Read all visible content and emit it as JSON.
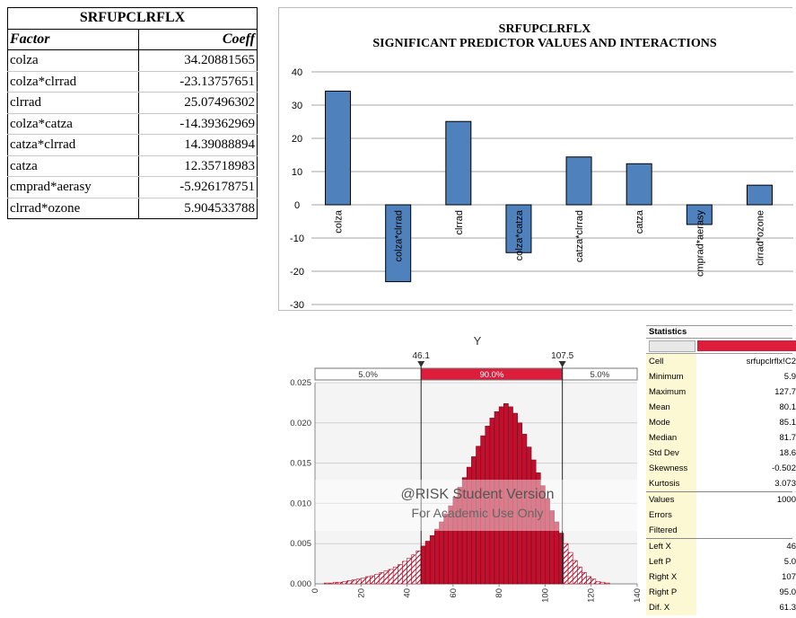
{
  "table": {
    "title": "SRFUPCLRFLX",
    "col_factor": "Factor",
    "col_coeff": "Coeff",
    "rows": [
      {
        "factor": "colza",
        "coeff": "34.20881565"
      },
      {
        "factor": "colza*clrrad",
        "coeff": "-23.13757651"
      },
      {
        "factor": "clrrad",
        "coeff": "25.07496302"
      },
      {
        "factor": "colza*catza",
        "coeff": "-14.39362969"
      },
      {
        "factor": "catza*clrrad",
        "coeff": "14.39088894"
      },
      {
        "factor": "catza",
        "coeff": "12.35718983"
      },
      {
        "factor": "cmprad*aerasy",
        "coeff": "-5.926178751"
      },
      {
        "factor": "clrrad*ozone",
        "coeff": "5.904533788"
      }
    ]
  },
  "chart_data": [
    {
      "type": "bar",
      "title": "SRFUPCLRFLX",
      "subtitle": "SIGNIFICANT PREDICTOR VALUES AND INTERACTIONS",
      "categories": [
        "colza",
        "colza*clrrad",
        "clrrad",
        "colza*catza",
        "catza*clrrad",
        "catza",
        "cmprad*aerasy",
        "clrrad*ozone"
      ],
      "values": [
        34.20881565,
        -23.13757651,
        25.07496302,
        -14.39362969,
        14.39088894,
        12.35718983,
        -5.926178751,
        5.904533788
      ],
      "ylim": [
        -30,
        40
      ],
      "yticks": [
        "40",
        "30",
        "20",
        "10",
        "0",
        "-10",
        "-20",
        "-30"
      ],
      "grid": true,
      "bar_color": "#4f81bd"
    },
    {
      "type": "bar",
      "title": "Y",
      "x": [
        2,
        4,
        6,
        8,
        10,
        12,
        14,
        16,
        18,
        20,
        22,
        24,
        26,
        28,
        30,
        32,
        34,
        36,
        38,
        40,
        42,
        44,
        46,
        48,
        50,
        52,
        54,
        56,
        58,
        60,
        62,
        64,
        66,
        68,
        70,
        72,
        74,
        76,
        78,
        80,
        82,
        84,
        86,
        88,
        90,
        92,
        94,
        96,
        98,
        100,
        102,
        104,
        106,
        108,
        110,
        112,
        114,
        116,
        118,
        120,
        122,
        124,
        126,
        128,
        130
      ],
      "values": [
        0.0,
        0.0,
        0.0001,
        0.0001,
        0.0002,
        0.0002,
        0.0003,
        0.0004,
        0.0005,
        0.0006,
        0.0007,
        0.0009,
        0.001,
        0.0012,
        0.0014,
        0.0016,
        0.0018,
        0.0021,
        0.0024,
        0.0028,
        0.0032,
        0.0036,
        0.0041,
        0.0047,
        0.0053,
        0.006,
        0.0068,
        0.0077,
        0.0087,
        0.0097,
        0.0108,
        0.012,
        0.0132,
        0.0145,
        0.0158,
        0.0171,
        0.0184,
        0.0196,
        0.0206,
        0.0214,
        0.022,
        0.0224,
        0.022,
        0.0212,
        0.02,
        0.0186,
        0.017,
        0.0154,
        0.0138,
        0.0122,
        0.0106,
        0.0091,
        0.0077,
        0.0063,
        0.005,
        0.0039,
        0.0029,
        0.0021,
        0.0014,
        0.0009,
        0.0006,
        0.0003,
        0.0002,
        0.0001,
        0.0
      ],
      "xlim": [
        0,
        140
      ],
      "ylim": [
        0,
        0.025
      ],
      "xticks": [
        "0",
        "20",
        "40",
        "60",
        "80",
        "100",
        "120",
        "140"
      ],
      "yticks": [
        "0.025",
        "0.020",
        "0.015",
        "0.010",
        "0.005",
        "0.000"
      ],
      "marker_left": "46.1",
      "marker_right": "107.5",
      "left_pct": "5.0%",
      "mid_pct": "90.0%",
      "right_pct": "5.0%",
      "watermark_line1": "@RISK Student Version",
      "watermark_line2": "For Academic Use Only",
      "bar_color": "#c0102e",
      "mid_band_color": "#dc1e3c"
    }
  ],
  "stats": {
    "title": "Statistics",
    "rows": [
      {
        "label": "Cell",
        "value": "srfupclrflx!C2",
        "sep": false
      },
      {
        "label": "Minimum",
        "value": "5.9",
        "sep": false
      },
      {
        "label": "Maximum",
        "value": "127.7",
        "sep": false
      },
      {
        "label": "Mean",
        "value": "80.1",
        "sep": false
      },
      {
        "label": "Mode",
        "value": "85.1",
        "sep": false
      },
      {
        "label": "Median",
        "value": "81.7",
        "sep": false
      },
      {
        "label": "Std Dev",
        "value": "18.6",
        "sep": false
      },
      {
        "label": "Skewness",
        "value": "-0.502",
        "sep": false
      },
      {
        "label": "Kurtosis",
        "value": "3.073",
        "sep": false
      },
      {
        "label": "Values",
        "value": "1000",
        "sep": true
      },
      {
        "label": "Errors",
        "value": "",
        "sep": false
      },
      {
        "label": "Filtered",
        "value": "",
        "sep": false
      },
      {
        "label": "Left X",
        "value": "46",
        "sep": true
      },
      {
        "label": "Left P",
        "value": "5.0",
        "sep": false
      },
      {
        "label": "Right X",
        "value": "107",
        "sep": false
      },
      {
        "label": "Right P",
        "value": "95.0",
        "sep": false
      },
      {
        "label": "Dif. X",
        "value": "61.3",
        "sep": false
      }
    ]
  }
}
